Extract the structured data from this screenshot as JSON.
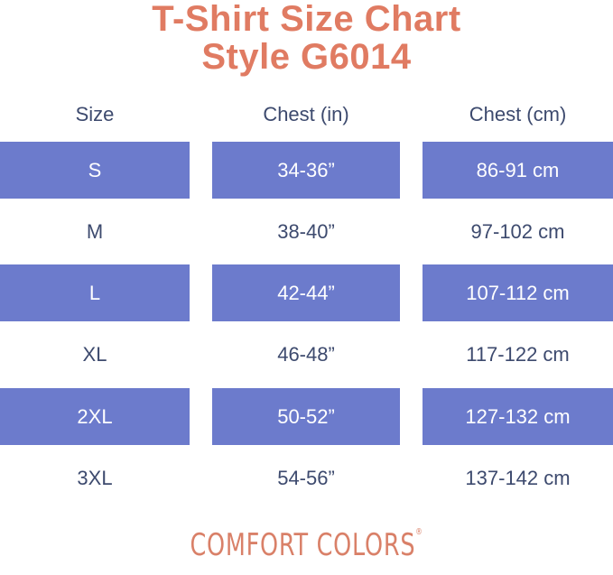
{
  "title": {
    "line1": "T-Shirt Size Chart",
    "line2": "Style G6014"
  },
  "headers": [
    "Size",
    "Chest (in)",
    "Chest (cm)"
  ],
  "rows": [
    {
      "size": "S",
      "chest_in": "34-36”",
      "chest_cm": "86-91 cm",
      "shaded": true
    },
    {
      "size": "M",
      "chest_in": "38-40”",
      "chest_cm": "97-102 cm",
      "shaded": false
    },
    {
      "size": "L",
      "chest_in": "42-44”",
      "chest_cm": "107-112 cm",
      "shaded": true
    },
    {
      "size": "XL",
      "chest_in": "46-48”",
      "chest_cm": "117-122 cm",
      "shaded": false
    },
    {
      "size": "2XL",
      "chest_in": "50-52”",
      "chest_cm": "127-132 cm",
      "shaded": true
    },
    {
      "size": "3XL",
      "chest_in": "54-56”",
      "chest_cm": "137-142 cm",
      "shaded": false
    }
  ],
  "logo": {
    "text": "COMFORT COLORS",
    "mark": "®"
  },
  "colors": {
    "title": "#e07b62",
    "row_fill": "#6c7bcc",
    "text": "#3d4a6e"
  }
}
